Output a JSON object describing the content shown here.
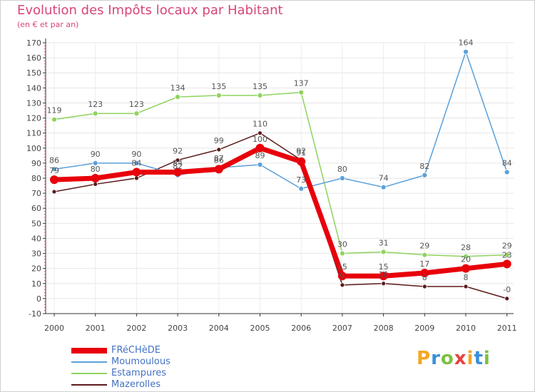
{
  "header": {
    "title": "Evolution des Impôts locaux par Habitant",
    "subtitle": "(en € et par an)"
  },
  "chart_data": {
    "type": "line",
    "title": "Evolution des Impôts locaux par Habitant",
    "subtitle": "(en € et par an)",
    "categories": [
      "2000",
      "2001",
      "2002",
      "2003",
      "2004",
      "2005",
      "2006",
      "2007",
      "2008",
      "2009",
      "2010",
      "2011"
    ],
    "ylim": [
      -10,
      170
    ],
    "yticks": [
      -10,
      0,
      10,
      20,
      30,
      40,
      50,
      60,
      70,
      80,
      90,
      100,
      110,
      120,
      130,
      140,
      150,
      160,
      170
    ],
    "grid": true,
    "legend_position": "bottom-left",
    "series": [
      {
        "name": "Mazerolles",
        "color": "#5c1a1a",
        "width": 1.5,
        "marker_radius": 3,
        "values": [
          71,
          76,
          80,
          92,
          99,
          110,
          92,
          9,
          10,
          8,
          8,
          0
        ],
        "labels": [
          "",
          "",
          "",
          "92",
          "99",
          "110",
          "92",
          "9",
          "10",
          "8",
          "8",
          "-0"
        ]
      },
      {
        "name": "Estampures",
        "color": "#8fd35f",
        "width": 1.5,
        "marker_radius": 3.5,
        "values": [
          119,
          123,
          123,
          134,
          135,
          135,
          137,
          30,
          31,
          29,
          28,
          29
        ],
        "labels": [
          "119",
          "123",
          "123",
          "134",
          "135",
          "135",
          "137",
          "30",
          "31",
          "29",
          "28",
          "29"
        ]
      },
      {
        "name": "Moumoulous",
        "color": "#5ba0d8",
        "width": 1.5,
        "marker_radius": 3.5,
        "values": [
          86,
          90,
          90,
          82,
          87,
          89,
          73,
          80,
          74,
          82,
          164,
          84
        ],
        "labels": [
          "86",
          "90",
          "90",
          "82",
          "87",
          "89",
          "73",
          "80",
          "74",
          "82",
          "164",
          "84"
        ]
      },
      {
        "name": "FRéCHèDE",
        "color": "#e8000b",
        "width": 7,
        "marker_radius": 6,
        "values": [
          79,
          80,
          84,
          84,
          86,
          100,
          91,
          15,
          15,
          17,
          20,
          23
        ],
        "labels": [
          "79",
          "80",
          "84",
          "84",
          "86",
          "100",
          "91",
          "15",
          "15",
          "17",
          "20",
          "23"
        ]
      }
    ],
    "legend": [
      "FRéCHèDE",
      "Moumoulous",
      "Estampures",
      "Mazerolles"
    ]
  },
  "branding": {
    "logo_text": "Proxiti",
    "logo_colors": [
      "#f5a623",
      "#3a8fd9",
      "#7bc043",
      "#e8423f",
      "#f5a623",
      "#3a8fd9",
      "#7bc043"
    ]
  }
}
